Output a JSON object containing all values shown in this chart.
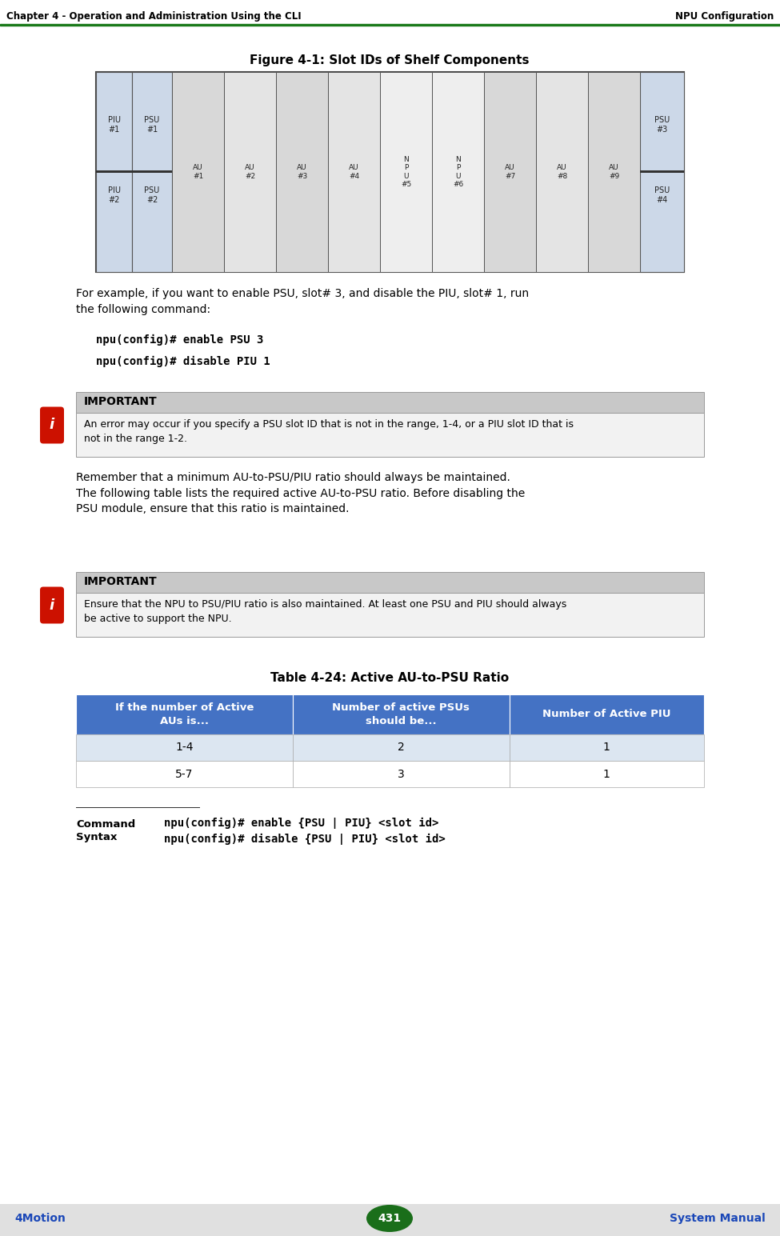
{
  "header_left": "Chapter 4 - Operation and Administration Using the CLI",
  "header_right": "NPU Configuration",
  "footer_left": "4Motion",
  "footer_center": "431",
  "footer_right": "System Manual",
  "fig_title": "Figure 4-1: Slot IDs of Shelf Components",
  "para1": "For example, if you want to enable PSU, slot# 3, and disable the PIU, slot# 1, run\nthe following command:",
  "code1": "npu(config)# enable PSU 3",
  "code2": "npu(config)# disable PIU 1",
  "important1_title": "IMPORTANT",
  "important1_text": "An error may occur if you specify a PSU slot ID that is not in the range, 1-4, or a PIU slot ID that is\nnot in the range 1-2.",
  "para2": "Remember that a minimum AU-to-PSU/PIU ratio should always be maintained.\nThe following table lists the required active AU-to-PSU ratio. Before disabling the\nPSU module, ensure that this ratio is maintained.",
  "important2_title": "IMPORTANT",
  "important2_text": "Ensure that the NPU to PSU/PIU ratio is also maintained. At least one PSU and PIU should always\nbe active to support the NPU.",
  "table_title": "Table 4-24: Active AU-to-PSU Ratio",
  "table_headers": [
    "If the number of Active\nAUs is...",
    "Number of active PSUs\nshould be...",
    "Number of Active PIU"
  ],
  "table_rows": [
    [
      "1-4",
      "2",
      "1"
    ],
    [
      "5-7",
      "3",
      "1"
    ]
  ],
  "cmd_label": "Command\nSyntax",
  "cmd_lines": [
    "npu(config)# enable {PSU | PIU} <slot id>",
    "npu(config)# disable {PSU | PIU} <slot id>"
  ],
  "header_green": "#1a7a1a",
  "imp_title_bg": "#c8c8c8",
  "imp_body_bg": "#f0f0f0",
  "imp_border": "#aaaaaa",
  "table_header_bg": "#4472c4",
  "table_row1_bg": "#dce6f1",
  "table_row2_bg": "#ffffff",
  "footer_bg": "#e0e0e0",
  "page_bg": "#ffffff",
  "icon_red": "#cc1100",
  "blue_text": "#1a47b8"
}
